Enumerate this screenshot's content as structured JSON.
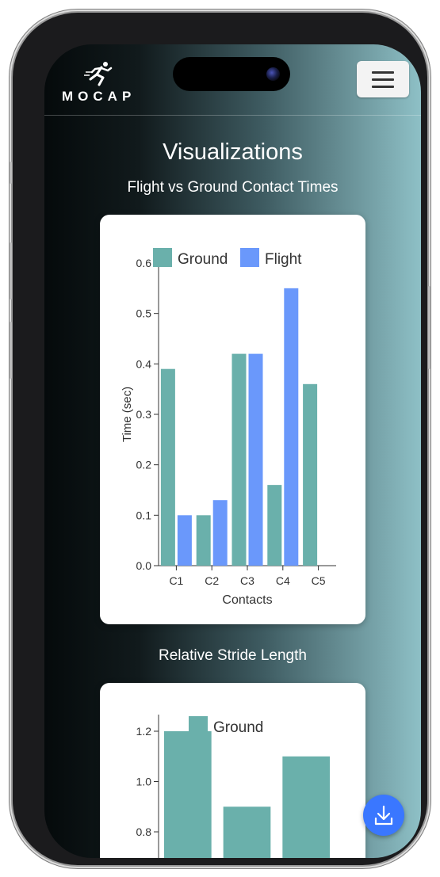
{
  "header": {
    "logo_text": "MOCAP",
    "menu_icon": "hamburger-icon"
  },
  "page": {
    "title": "Visualizations"
  },
  "charts": {
    "flight_title": "Flight vs Ground Contact Times",
    "stride_title": "Relative Stride Length"
  },
  "fab": {
    "icon": "download-icon"
  },
  "colors": {
    "ground": "#6ab0ab",
    "flight": "#6a98fb",
    "fab": "#3a77ff"
  },
  "chart_data": [
    {
      "type": "bar",
      "xlabel": "Contacts",
      "ylabel": "Time (sec)",
      "categories": [
        "C1",
        "C2",
        "C3",
        "C4",
        "C5"
      ],
      "ylim": [
        0,
        0.6
      ],
      "yticks": [
        "0.0",
        "0.1",
        "0.2",
        "0.3",
        "0.4",
        "0.5",
        "0.6"
      ],
      "legend": "top",
      "series": [
        {
          "name": "Ground",
          "values": [
            0.39,
            0.1,
            0.42,
            0.16,
            0.36
          ]
        },
        {
          "name": "Flight",
          "values": [
            0.1,
            0.13,
            0.42,
            0.55,
            null
          ]
        }
      ]
    },
    {
      "type": "bar",
      "xlabel": "",
      "ylabel": "",
      "ylim": [
        0.7,
        1.25
      ],
      "yticks": [
        "0.8",
        "1.0",
        "1.2"
      ],
      "legend": "top",
      "series": [
        {
          "name": "Ground",
          "values": [
            1.2,
            0.9,
            1.1
          ]
        }
      ]
    }
  ]
}
